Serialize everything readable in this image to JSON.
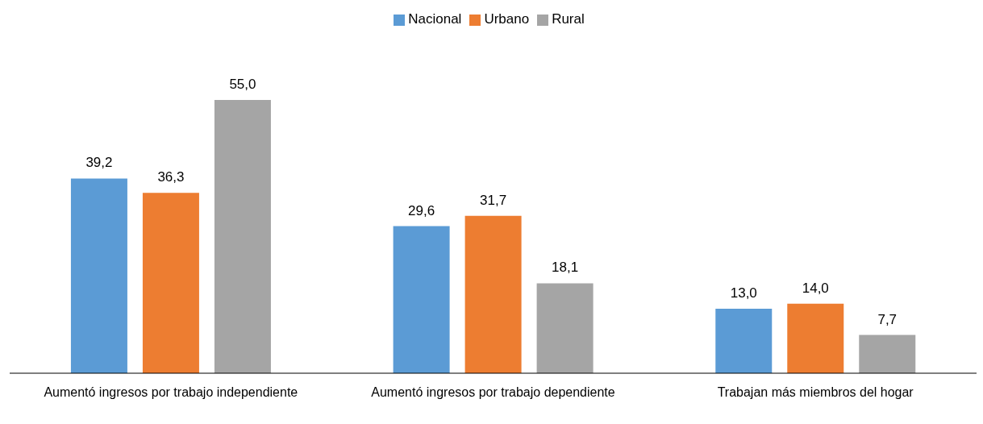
{
  "chart_data": {
    "type": "bar",
    "categories": [
      "Aumentó ingresos por trabajo independiente",
      "Aumentó ingresos por trabajo dependiente",
      "Trabajan más miembros del hogar"
    ],
    "series": [
      {
        "name": "Nacional",
        "color": "#5b9bd5",
        "values": [
          39.2,
          29.6,
          13.0
        ],
        "value_labels": [
          "39,2",
          "29,6",
          "13,0"
        ]
      },
      {
        "name": "Urbano",
        "color": "#ed7d31",
        "values": [
          36.3,
          31.7,
          14.0
        ],
        "value_labels": [
          "36,3",
          "31,7",
          "14,0"
        ]
      },
      {
        "name": "Rural",
        "color": "#a5a5a5",
        "values": [
          55.0,
          18.1,
          7.7
        ],
        "value_labels": [
          "55,0",
          "18,1",
          "7,7"
        ]
      }
    ],
    "legend": "top",
    "grid": false,
    "tick_labels": "x"
  }
}
